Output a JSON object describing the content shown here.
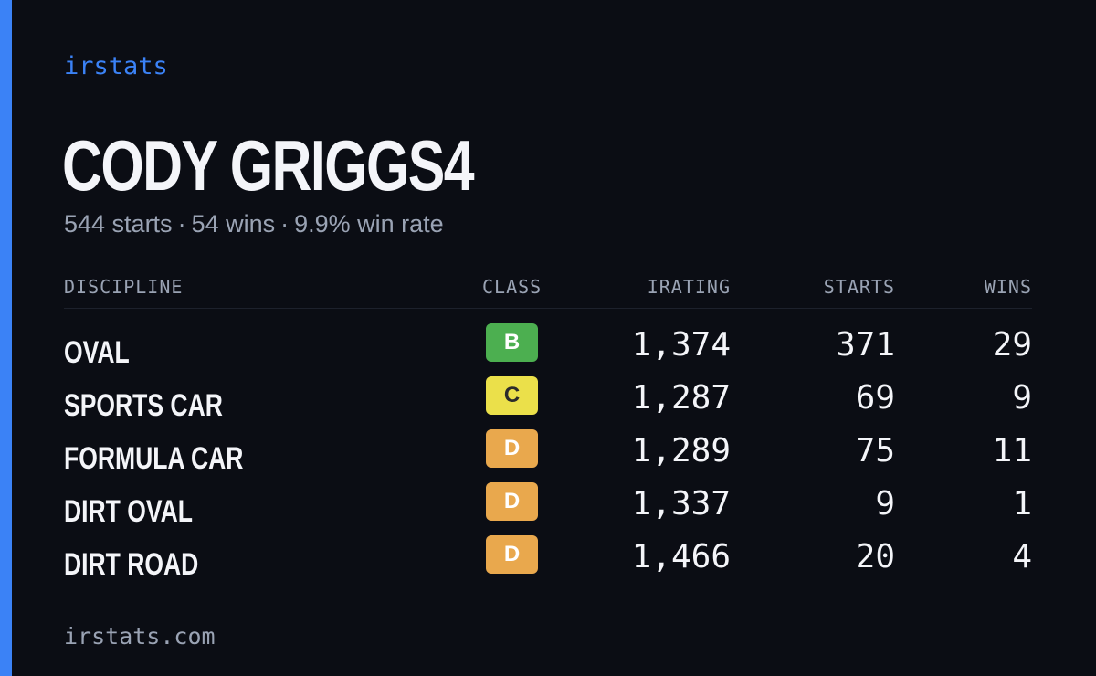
{
  "brand": "irstats",
  "player": {
    "name": "CODY GRIGGS4",
    "starts_text": "544 starts",
    "wins_text": "54 wins",
    "win_rate_text": "9.9% win rate",
    "separator": "·"
  },
  "table": {
    "headers": {
      "discipline": "DISCIPLINE",
      "class": "CLASS",
      "irating": "IRATING",
      "starts": "STARTS",
      "wins": "WINS"
    },
    "rows": [
      {
        "discipline": "OVAL",
        "class": "B",
        "class_color": "#4caf50",
        "class_text_color": "#ffffff",
        "irating": "1,374",
        "starts": "371",
        "wins": "29"
      },
      {
        "discipline": "SPORTS CAR",
        "class": "C",
        "class_color": "#ebe04a",
        "class_text_color": "#2b2b2b",
        "irating": "1,287",
        "starts": "69",
        "wins": "9"
      },
      {
        "discipline": "FORMULA CAR",
        "class": "D",
        "class_color": "#e9a84d",
        "class_text_color": "#ffffff",
        "irating": "1,289",
        "starts": "75",
        "wins": "11"
      },
      {
        "discipline": "DIRT OVAL",
        "class": "D",
        "class_color": "#e9a84d",
        "class_text_color": "#ffffff",
        "irating": "1,337",
        "starts": "9",
        "wins": "1"
      },
      {
        "discipline": "DIRT ROAD",
        "class": "D",
        "class_color": "#e9a84d",
        "class_text_color": "#ffffff",
        "irating": "1,466",
        "starts": "20",
        "wins": "4"
      }
    ]
  },
  "footer": {
    "url": "irstats.com"
  },
  "colors": {
    "background": "#0b0d14",
    "accent": "#3b82f6",
    "text_primary": "#f4f5f9",
    "text_muted": "#9aa3b4"
  }
}
